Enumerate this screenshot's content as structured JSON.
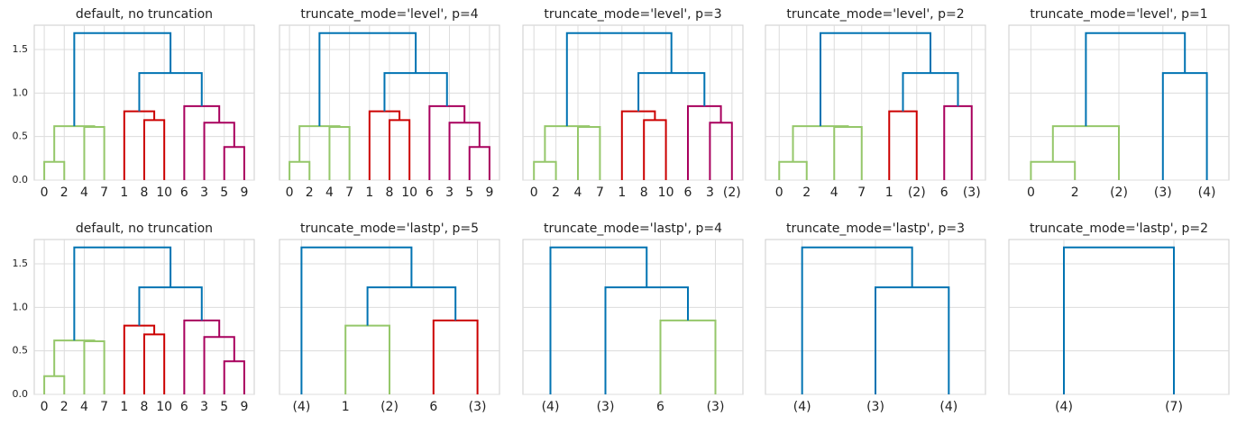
{
  "chart_data": [
    {
      "type": "dendrogram",
      "title": "default, no truncation",
      "ylim": [
        0,
        1.78
      ],
      "yticks": [
        {
          "value": 0,
          "label": "0.0"
        },
        {
          "value": 0.5,
          "label": "0.5"
        },
        {
          "value": 1,
          "label": "1.0"
        },
        {
          "value": 1.5,
          "label": "1.5"
        }
      ],
      "grid": true,
      "tree": {
        "height": 1.69,
        "color": "#0173b2",
        "children": [
          {
            "height": 0.62,
            "color": "#95c76a",
            "children": [
              {
                "height": 0.21,
                "color": "#95c76a",
                "children": [
                  {
                    "label": "0"
                  },
                  {
                    "label": "2"
                  }
                ]
              },
              {
                "height": 0.61,
                "color": "#95c76a",
                "children": [
                  {
                    "label": "4"
                  },
                  {
                    "label": "7"
                  }
                ]
              }
            ]
          },
          {
            "height": 1.23,
            "color": "#0173b2",
            "children": [
              {
                "height": 0.79,
                "color": "#cc0000",
                "children": [
                  {
                    "label": "1"
                  },
                  {
                    "height": 0.69,
                    "color": "#cc0000",
                    "children": [
                      {
                        "label": "8"
                      },
                      {
                        "label": "10"
                      }
                    ]
                  }
                ]
              },
              {
                "height": 0.85,
                "color": "#a8005d",
                "children": [
                  {
                    "label": "6"
                  },
                  {
                    "height": 0.66,
                    "color": "#a8005d",
                    "children": [
                      {
                        "label": "3"
                      },
                      {
                        "height": 0.38,
                        "color": "#a8005d",
                        "children": [
                          {
                            "label": "5"
                          },
                          {
                            "label": "9"
                          }
                        ]
                      }
                    ]
                  }
                ]
              }
            ]
          }
        ]
      }
    },
    {
      "type": "dendrogram",
      "title": "truncate_mode='level', p=4",
      "ylim": [
        0,
        1.78
      ],
      "yticks": [
        0,
        0.5,
        1,
        1.5
      ],
      "grid": true,
      "tree": {
        "height": 1.69,
        "color": "#0173b2",
        "children": [
          {
            "height": 0.62,
            "color": "#95c76a",
            "children": [
              {
                "height": 0.21,
                "color": "#95c76a",
                "children": [
                  {
                    "label": "0"
                  },
                  {
                    "label": "2"
                  }
                ]
              },
              {
                "height": 0.61,
                "color": "#95c76a",
                "children": [
                  {
                    "label": "4"
                  },
                  {
                    "label": "7"
                  }
                ]
              }
            ]
          },
          {
            "height": 1.23,
            "color": "#0173b2",
            "children": [
              {
                "height": 0.79,
                "color": "#cc0000",
                "children": [
                  {
                    "label": "1"
                  },
                  {
                    "height": 0.69,
                    "color": "#cc0000",
                    "children": [
                      {
                        "label": "8"
                      },
                      {
                        "label": "10"
                      }
                    ]
                  }
                ]
              },
              {
                "height": 0.85,
                "color": "#a8005d",
                "children": [
                  {
                    "label": "6"
                  },
                  {
                    "height": 0.66,
                    "color": "#a8005d",
                    "children": [
                      {
                        "label": "3"
                      },
                      {
                        "height": 0.38,
                        "color": "#a8005d",
                        "children": [
                          {
                            "label": "5"
                          },
                          {
                            "label": "9"
                          }
                        ]
                      }
                    ]
                  }
                ]
              }
            ]
          }
        ]
      }
    },
    {
      "type": "dendrogram",
      "title": "truncate_mode='level', p=3",
      "ylim": [
        0,
        1.78
      ],
      "yticks": [
        0,
        0.5,
        1,
        1.5
      ],
      "grid": true,
      "tree": {
        "height": 1.69,
        "color": "#0173b2",
        "children": [
          {
            "height": 0.62,
            "color": "#95c76a",
            "children": [
              {
                "height": 0.21,
                "color": "#95c76a",
                "children": [
                  {
                    "label": "0"
                  },
                  {
                    "label": "2"
                  }
                ]
              },
              {
                "height": 0.61,
                "color": "#95c76a",
                "children": [
                  {
                    "label": "4"
                  },
                  {
                    "label": "7"
                  }
                ]
              }
            ]
          },
          {
            "height": 1.23,
            "color": "#0173b2",
            "children": [
              {
                "height": 0.79,
                "color": "#cc0000",
                "children": [
                  {
                    "label": "1"
                  },
                  {
                    "height": 0.69,
                    "color": "#cc0000",
                    "children": [
                      {
                        "label": "8"
                      },
                      {
                        "label": "10"
                      }
                    ]
                  }
                ]
              },
              {
                "height": 0.85,
                "color": "#a8005d",
                "children": [
                  {
                    "label": "6"
                  },
                  {
                    "height": 0.66,
                    "color": "#a8005d",
                    "children": [
                      {
                        "label": "3"
                      },
                      {
                        "label": "(2)"
                      }
                    ]
                  }
                ]
              }
            ]
          }
        ]
      }
    },
    {
      "type": "dendrogram",
      "title": "truncate_mode='level', p=2",
      "ylim": [
        0,
        1.78
      ],
      "yticks": [
        0,
        0.5,
        1,
        1.5
      ],
      "grid": true,
      "tree": {
        "height": 1.69,
        "color": "#0173b2",
        "children": [
          {
            "height": 0.62,
            "color": "#95c76a",
            "children": [
              {
                "height": 0.21,
                "color": "#95c76a",
                "children": [
                  {
                    "label": "0"
                  },
                  {
                    "label": "2"
                  }
                ]
              },
              {
                "height": 0.61,
                "color": "#95c76a",
                "children": [
                  {
                    "label": "4"
                  },
                  {
                    "label": "7"
                  }
                ]
              }
            ]
          },
          {
            "height": 1.23,
            "color": "#0173b2",
            "children": [
              {
                "height": 0.79,
                "color": "#cc0000",
                "children": [
                  {
                    "label": "1"
                  },
                  {
                    "label": "(2)"
                  }
                ]
              },
              {
                "height": 0.85,
                "color": "#a8005d",
                "children": [
                  {
                    "label": "6"
                  },
                  {
                    "label": "(3)"
                  }
                ]
              }
            ]
          }
        ]
      }
    },
    {
      "type": "dendrogram",
      "title": "truncate_mode='level', p=1",
      "ylim": [
        0,
        1.78
      ],
      "yticks": [
        0,
        0.5,
        1,
        1.5
      ],
      "grid": true,
      "tree": {
        "height": 1.69,
        "color": "#0173b2",
        "children": [
          {
            "height": 0.62,
            "color": "#95c76a",
            "children": [
              {
                "height": 0.21,
                "color": "#95c76a",
                "children": [
                  {
                    "label": "0"
                  },
                  {
                    "label": "2"
                  }
                ]
              },
              {
                "label": "(2)"
              }
            ]
          },
          {
            "height": 1.23,
            "color": "#0173b2",
            "children": [
              {
                "label": "(3)"
              },
              {
                "label": "(4)"
              }
            ]
          }
        ]
      }
    },
    {
      "type": "dendrogram",
      "title": "default, no truncation",
      "ylim": [
        0,
        1.78
      ],
      "yticks": [
        {
          "value": 0,
          "label": "0.0"
        },
        {
          "value": 0.5,
          "label": "0.5"
        },
        {
          "value": 1,
          "label": "1.0"
        },
        {
          "value": 1.5,
          "label": "1.5"
        }
      ],
      "grid": true,
      "tree": {
        "height": 1.69,
        "color": "#0173b2",
        "children": [
          {
            "height": 0.62,
            "color": "#95c76a",
            "children": [
              {
                "height": 0.21,
                "color": "#95c76a",
                "children": [
                  {
                    "label": "0"
                  },
                  {
                    "label": "2"
                  }
                ]
              },
              {
                "height": 0.61,
                "color": "#95c76a",
                "children": [
                  {
                    "label": "4"
                  },
                  {
                    "label": "7"
                  }
                ]
              }
            ]
          },
          {
            "height": 1.23,
            "color": "#0173b2",
            "children": [
              {
                "height": 0.79,
                "color": "#cc0000",
                "children": [
                  {
                    "label": "1"
                  },
                  {
                    "height": 0.69,
                    "color": "#cc0000",
                    "children": [
                      {
                        "label": "8"
                      },
                      {
                        "label": "10"
                      }
                    ]
                  }
                ]
              },
              {
                "height": 0.85,
                "color": "#a8005d",
                "children": [
                  {
                    "label": "6"
                  },
                  {
                    "height": 0.66,
                    "color": "#a8005d",
                    "children": [
                      {
                        "label": "3"
                      },
                      {
                        "height": 0.38,
                        "color": "#a8005d",
                        "children": [
                          {
                            "label": "5"
                          },
                          {
                            "label": "9"
                          }
                        ]
                      }
                    ]
                  }
                ]
              }
            ]
          }
        ]
      }
    },
    {
      "type": "dendrogram",
      "title": "truncate_mode='lastp', p=5",
      "ylim": [
        0,
        1.78
      ],
      "yticks": [
        0,
        0.5,
        1,
        1.5
      ],
      "grid": true,
      "tree": {
        "height": 1.69,
        "color": "#0173b2",
        "children": [
          {
            "label": "(4)"
          },
          {
            "height": 1.23,
            "color": "#0173b2",
            "children": [
              {
                "height": 0.79,
                "color": "#95c76a",
                "children": [
                  {
                    "label": "1"
                  },
                  {
                    "label": "(2)"
                  }
                ]
              },
              {
                "height": 0.85,
                "color": "#cc0000",
                "children": [
                  {
                    "label": "6"
                  },
                  {
                    "label": "(3)"
                  }
                ]
              }
            ]
          }
        ]
      }
    },
    {
      "type": "dendrogram",
      "title": "truncate_mode='lastp', p=4",
      "ylim": [
        0,
        1.78
      ],
      "yticks": [
        0,
        0.5,
        1,
        1.5
      ],
      "grid": true,
      "tree": {
        "height": 1.69,
        "color": "#0173b2",
        "children": [
          {
            "label": "(4)"
          },
          {
            "height": 1.23,
            "color": "#0173b2",
            "children": [
              {
                "label": "(3)"
              },
              {
                "height": 0.85,
                "color": "#95c76a",
                "children": [
                  {
                    "label": "6"
                  },
                  {
                    "label": "(3)"
                  }
                ]
              }
            ]
          }
        ]
      }
    },
    {
      "type": "dendrogram",
      "title": "truncate_mode='lastp', p=3",
      "ylim": [
        0,
        1.78
      ],
      "yticks": [
        0,
        0.5,
        1,
        1.5
      ],
      "grid": true,
      "tree": {
        "height": 1.69,
        "color": "#0173b2",
        "children": [
          {
            "label": "(4)"
          },
          {
            "height": 1.23,
            "color": "#0173b2",
            "children": [
              {
                "label": "(3)"
              },
              {
                "label": "(4)"
              }
            ]
          }
        ]
      }
    },
    {
      "type": "dendrogram",
      "title": "truncate_mode='lastp', p=2",
      "ylim": [
        0,
        1.78
      ],
      "yticks": [
        0,
        0.5,
        1,
        1.5
      ],
      "grid": true,
      "tree": {
        "height": 1.69,
        "color": "#0173b2",
        "children": [
          {
            "label": "(4)"
          },
          {
            "label": "(7)"
          }
        ]
      }
    }
  ]
}
